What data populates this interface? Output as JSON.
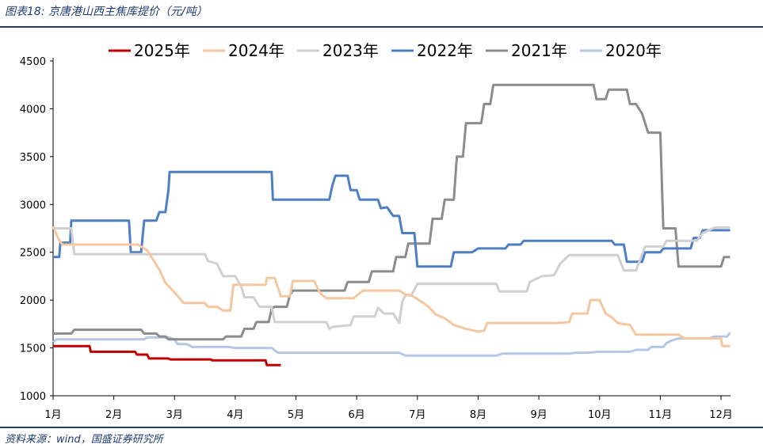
{
  "header": {
    "title": "图表18:  京唐港山西主焦库提价（元/吨）"
  },
  "footer": {
    "source": "资料来源：wind，国盛证券研究所"
  },
  "chart_data": {
    "type": "line",
    "title": "",
    "xlabel": "",
    "ylabel": "",
    "x_range": [
      1,
      13
    ],
    "ylim": [
      1000,
      4500
    ],
    "yticks": [
      1000,
      1500,
      2000,
      2500,
      3000,
      3500,
      4000,
      4500
    ],
    "xticks": [
      {
        "value": 1,
        "label": "1月"
      },
      {
        "value": 2,
        "label": "2月"
      },
      {
        "value": 3,
        "label": "3月"
      },
      {
        "value": 4,
        "label": "4月"
      },
      {
        "value": 5,
        "label": "5月"
      },
      {
        "value": 6,
        "label": "6月"
      },
      {
        "value": 7,
        "label": "7月"
      },
      {
        "value": 8,
        "label": "8月"
      },
      {
        "value": 9,
        "label": "9月"
      },
      {
        "value": 10,
        "label": "10月"
      },
      {
        "value": 11,
        "label": "11月"
      },
      {
        "value": 12,
        "label": "12月"
      }
    ],
    "legend_position": "top",
    "grid": false,
    "series": [
      {
        "name": "2025年",
        "color": "#c00000",
        "width": 3,
        "points": [
          [
            1,
            1520
          ],
          [
            1.6,
            1520
          ],
          [
            1.62,
            1460
          ],
          [
            2.35,
            1460
          ],
          [
            2.38,
            1430
          ],
          [
            2.55,
            1430
          ],
          [
            2.58,
            1390
          ],
          [
            2.9,
            1390
          ],
          [
            2.93,
            1380
          ],
          [
            3.6,
            1380
          ],
          [
            3.62,
            1370
          ],
          [
            4.5,
            1370
          ],
          [
            4.52,
            1320
          ],
          [
            4.75,
            1320
          ]
        ]
      },
      {
        "name": "2024年",
        "color": "#f4c7a0",
        "width": 3,
        "points": [
          [
            1,
            2770
          ],
          [
            1.08,
            2650
          ],
          [
            1.15,
            2580
          ],
          [
            2.4,
            2580
          ],
          [
            2.55,
            2520
          ],
          [
            2.65,
            2420
          ],
          [
            2.75,
            2320
          ],
          [
            2.85,
            2180
          ],
          [
            3.0,
            2080
          ],
          [
            3.15,
            1970
          ],
          [
            3.5,
            1970
          ],
          [
            3.55,
            1930
          ],
          [
            3.7,
            1930
          ],
          [
            3.8,
            1890
          ],
          [
            3.92,
            1890
          ],
          [
            3.97,
            2160
          ],
          [
            4.5,
            2160
          ],
          [
            4.52,
            2230
          ],
          [
            4.65,
            2230
          ],
          [
            4.75,
            2040
          ],
          [
            4.9,
            2040
          ],
          [
            4.95,
            2200
          ],
          [
            5.3,
            2200
          ],
          [
            5.4,
            2070
          ],
          [
            5.5,
            2020
          ],
          [
            5.95,
            2020
          ],
          [
            6.1,
            2100
          ],
          [
            6.7,
            2100
          ],
          [
            6.8,
            2060
          ],
          [
            6.9,
            2050
          ],
          [
            7.0,
            2010
          ],
          [
            7.1,
            1970
          ],
          [
            7.2,
            1920
          ],
          [
            7.3,
            1850
          ],
          [
            7.45,
            1810
          ],
          [
            7.6,
            1740
          ],
          [
            7.8,
            1700
          ],
          [
            8.0,
            1670
          ],
          [
            8.1,
            1680
          ],
          [
            8.15,
            1760
          ],
          [
            8.9,
            1760
          ],
          [
            9.3,
            1760
          ],
          [
            9.5,
            1770
          ],
          [
            9.55,
            1860
          ],
          [
            9.8,
            1860
          ],
          [
            9.85,
            2000
          ],
          [
            10.0,
            2000
          ],
          [
            10.1,
            1860
          ],
          [
            10.2,
            1820
          ],
          [
            10.3,
            1760
          ],
          [
            10.5,
            1740
          ],
          [
            10.6,
            1640
          ],
          [
            11.3,
            1640
          ],
          [
            11.4,
            1600
          ],
          [
            12.0,
            1600
          ],
          [
            12.02,
            1520
          ],
          [
            12.15,
            1520
          ]
        ]
      },
      {
        "name": "2023年",
        "color": "#d0d0d0",
        "width": 3,
        "points": [
          [
            1,
            2750
          ],
          [
            1.3,
            2750
          ],
          [
            1.35,
            2480
          ],
          [
            3.5,
            2480
          ],
          [
            3.55,
            2410
          ],
          [
            3.7,
            2380
          ],
          [
            3.8,
            2250
          ],
          [
            4.0,
            2250
          ],
          [
            4.1,
            2140
          ],
          [
            4.15,
            2030
          ],
          [
            4.3,
            2030
          ],
          [
            4.4,
            1930
          ],
          [
            4.6,
            1930
          ],
          [
            4.65,
            1770
          ],
          [
            5.2,
            1770
          ],
          [
            5.5,
            1770
          ],
          [
            5.55,
            1700
          ],
          [
            5.6,
            1720
          ],
          [
            5.9,
            1740
          ],
          [
            5.95,
            1830
          ],
          [
            6.3,
            1830
          ],
          [
            6.35,
            1920
          ],
          [
            6.45,
            1860
          ],
          [
            6.6,
            1860
          ],
          [
            6.7,
            1760
          ],
          [
            6.75,
            1980
          ],
          [
            6.8,
            2050
          ],
          [
            6.9,
            2050
          ],
          [
            7.0,
            2170
          ],
          [
            7.7,
            2170
          ],
          [
            8.3,
            2170
          ],
          [
            8.35,
            2090
          ],
          [
            8.8,
            2090
          ],
          [
            8.85,
            2190
          ],
          [
            8.95,
            2220
          ],
          [
            9.05,
            2250
          ],
          [
            9.25,
            2260
          ],
          [
            9.35,
            2380
          ],
          [
            9.5,
            2470
          ],
          [
            10.3,
            2470
          ],
          [
            10.4,
            2310
          ],
          [
            10.6,
            2310
          ],
          [
            10.75,
            2560
          ],
          [
            11.05,
            2560
          ],
          [
            11.1,
            2620
          ],
          [
            11.6,
            2620
          ],
          [
            11.7,
            2700
          ],
          [
            11.9,
            2760
          ],
          [
            12.15,
            2760
          ]
        ]
      },
      {
        "name": "2022年",
        "color": "#4e7fc3",
        "width": 3,
        "points": [
          [
            1,
            2450
          ],
          [
            1.1,
            2450
          ],
          [
            1.12,
            2600
          ],
          [
            1.28,
            2600
          ],
          [
            1.3,
            2830
          ],
          [
            2.25,
            2830
          ],
          [
            2.28,
            2500
          ],
          [
            2.45,
            2500
          ],
          [
            2.5,
            2830
          ],
          [
            2.7,
            2830
          ],
          [
            2.75,
            2920
          ],
          [
            2.85,
            2920
          ],
          [
            2.9,
            3150
          ],
          [
            2.92,
            3340
          ],
          [
            4.6,
            3340
          ],
          [
            4.62,
            3050
          ],
          [
            5.55,
            3050
          ],
          [
            5.6,
            3200
          ],
          [
            5.65,
            3300
          ],
          [
            5.85,
            3300
          ],
          [
            5.9,
            3150
          ],
          [
            6.0,
            3150
          ],
          [
            6.05,
            3050
          ],
          [
            6.35,
            3050
          ],
          [
            6.4,
            2960
          ],
          [
            6.5,
            2970
          ],
          [
            6.6,
            2880
          ],
          [
            6.7,
            2880
          ],
          [
            6.75,
            2700
          ],
          [
            6.95,
            2700
          ],
          [
            7.0,
            2350
          ],
          [
            7.55,
            2350
          ],
          [
            7.6,
            2500
          ],
          [
            7.9,
            2500
          ],
          [
            8.0,
            2540
          ],
          [
            8.45,
            2540
          ],
          [
            8.5,
            2580
          ],
          [
            8.7,
            2580
          ],
          [
            8.75,
            2620
          ],
          [
            10.2,
            2620
          ],
          [
            10.25,
            2580
          ],
          [
            10.4,
            2580
          ],
          [
            10.45,
            2400
          ],
          [
            10.7,
            2400
          ],
          [
            10.75,
            2500
          ],
          [
            11.0,
            2500
          ],
          [
            11.05,
            2540
          ],
          [
            11.5,
            2540
          ],
          [
            11.55,
            2650
          ],
          [
            11.65,
            2650
          ],
          [
            11.7,
            2730
          ],
          [
            12.15,
            2730
          ]
        ]
      },
      {
        "name": "2021年",
        "color": "#8c8c8c",
        "width": 3,
        "points": [
          [
            1,
            1650
          ],
          [
            1.3,
            1650
          ],
          [
            1.35,
            1690
          ],
          [
            2.45,
            1690
          ],
          [
            2.5,
            1650
          ],
          [
            2.7,
            1650
          ],
          [
            2.75,
            1620
          ],
          [
            2.85,
            1620
          ],
          [
            2.9,
            1590
          ],
          [
            3.8,
            1590
          ],
          [
            3.85,
            1620
          ],
          [
            4.1,
            1620
          ],
          [
            4.15,
            1700
          ],
          [
            4.3,
            1700
          ],
          [
            4.35,
            1770
          ],
          [
            4.55,
            1770
          ],
          [
            4.6,
            1910
          ],
          [
            4.65,
            1930
          ],
          [
            4.85,
            1930
          ],
          [
            4.9,
            2050
          ],
          [
            4.95,
            2100
          ],
          [
            5.8,
            2100
          ],
          [
            5.85,
            2190
          ],
          [
            6.2,
            2190
          ],
          [
            6.25,
            2300
          ],
          [
            6.6,
            2300
          ],
          [
            6.65,
            2450
          ],
          [
            6.8,
            2450
          ],
          [
            6.85,
            2590
          ],
          [
            7.2,
            2590
          ],
          [
            7.25,
            2850
          ],
          [
            7.4,
            2850
          ],
          [
            7.45,
            3050
          ],
          [
            7.6,
            3050
          ],
          [
            7.65,
            3500
          ],
          [
            7.75,
            3500
          ],
          [
            7.8,
            3850
          ],
          [
            8.05,
            3850
          ],
          [
            8.1,
            4050
          ],
          [
            8.2,
            4050
          ],
          [
            8.25,
            4250
          ],
          [
            9.9,
            4250
          ],
          [
            9.95,
            4100
          ],
          [
            10.1,
            4100
          ],
          [
            10.15,
            4200
          ],
          [
            10.45,
            4200
          ],
          [
            10.5,
            4050
          ],
          [
            10.6,
            4050
          ],
          [
            10.7,
            3950
          ],
          [
            10.8,
            3750
          ],
          [
            11.0,
            3750
          ],
          [
            11.05,
            2750
          ],
          [
            11.25,
            2750
          ],
          [
            11.3,
            2350
          ],
          [
            12.0,
            2350
          ],
          [
            12.05,
            2450
          ],
          [
            12.15,
            2450
          ]
        ]
      },
      {
        "name": "2020年",
        "color": "#b4c7e7",
        "width": 3,
        "points": [
          [
            1,
            1560
          ],
          [
            1.05,
            1590
          ],
          [
            2.5,
            1590
          ],
          [
            2.55,
            1610
          ],
          [
            2.9,
            1610
          ],
          [
            3.0,
            1590
          ],
          [
            3.05,
            1540
          ],
          [
            3.2,
            1540
          ],
          [
            3.3,
            1510
          ],
          [
            3.9,
            1510
          ],
          [
            4.0,
            1500
          ],
          [
            4.6,
            1500
          ],
          [
            4.7,
            1450
          ],
          [
            6.1,
            1450
          ],
          [
            6.5,
            1450
          ],
          [
            6.6,
            1450
          ],
          [
            6.7,
            1450
          ],
          [
            6.8,
            1420
          ],
          [
            7.1,
            1420
          ],
          [
            7.5,
            1420
          ],
          [
            7.6,
            1420
          ],
          [
            8.3,
            1420
          ],
          [
            8.4,
            1440
          ],
          [
            8.7,
            1440
          ],
          [
            9.5,
            1440
          ],
          [
            9.6,
            1450
          ],
          [
            9.8,
            1450
          ],
          [
            10.0,
            1460
          ],
          [
            10.5,
            1460
          ],
          [
            10.6,
            1480
          ],
          [
            10.8,
            1480
          ],
          [
            10.85,
            1510
          ],
          [
            11.05,
            1510
          ],
          [
            11.1,
            1550
          ],
          [
            11.2,
            1580
          ],
          [
            11.3,
            1600
          ],
          [
            11.8,
            1600
          ],
          [
            11.9,
            1620
          ],
          [
            12.1,
            1620
          ],
          [
            12.15,
            1660
          ]
        ]
      }
    ]
  }
}
